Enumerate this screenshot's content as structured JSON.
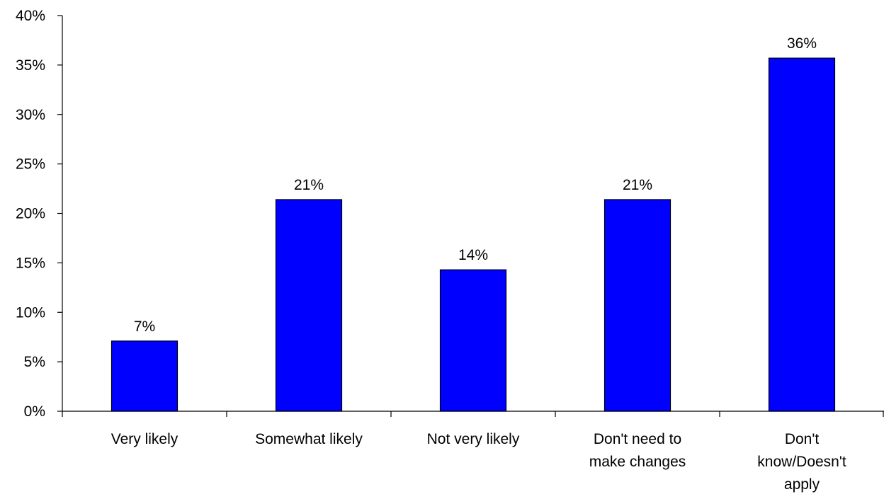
{
  "chart_data": {
    "type": "bar",
    "categories": [
      [
        "Very likely"
      ],
      [
        "Somewhat likely"
      ],
      [
        "Not very likely"
      ],
      [
        "Don't need to",
        "make changes"
      ],
      [
        "Don't",
        "know/Doesn't",
        "apply"
      ]
    ],
    "values": [
      7.1,
      21.4,
      14.3,
      21.4,
      35.7
    ],
    "data_labels": [
      "7%",
      "21%",
      "14%",
      "21%",
      "36%"
    ],
    "y_ticks": [
      0,
      5,
      10,
      15,
      20,
      25,
      30,
      35,
      40
    ],
    "y_tick_labels": [
      "0%",
      "5%",
      "10%",
      "15%",
      "20%",
      "25%",
      "30%",
      "35%",
      "40%"
    ],
    "ylim": [
      0,
      40
    ],
    "grid": false,
    "legend": "none",
    "colors": {
      "bar_fill": "#0000FF",
      "bar_stroke": "#000000",
      "axis": "#000000"
    }
  }
}
